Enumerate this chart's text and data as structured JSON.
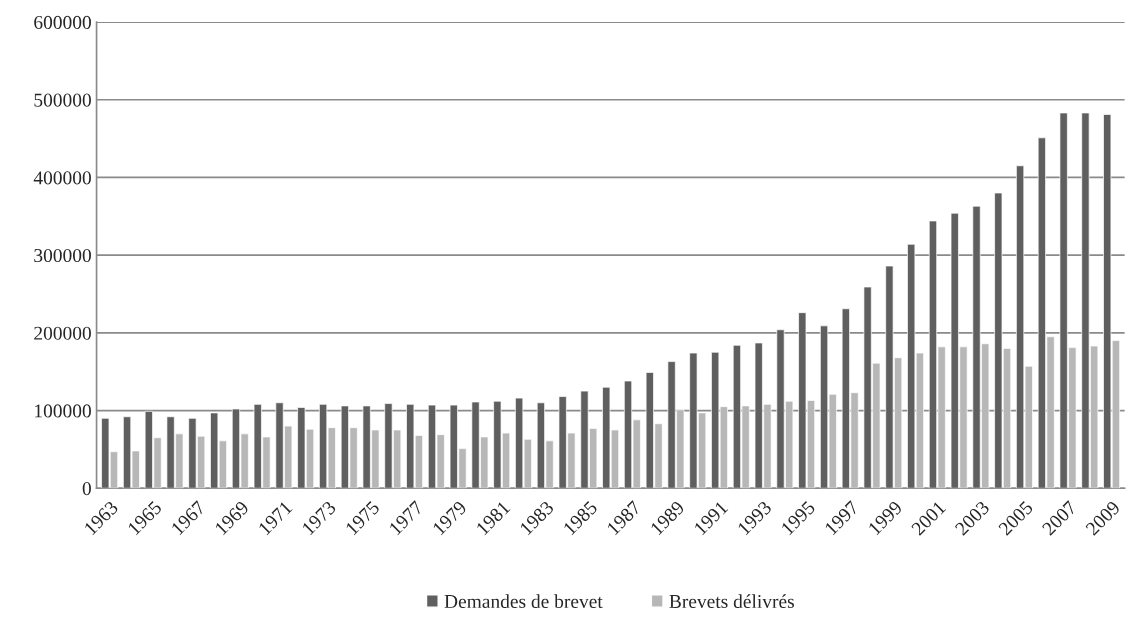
{
  "chart_data": {
    "type": "bar",
    "categories": [
      "1963",
      null,
      "1965",
      null,
      "1967",
      null,
      "1969",
      null,
      "1971",
      null,
      "1973",
      null,
      "1975",
      null,
      "1977",
      null,
      "1979",
      null,
      "1981",
      null,
      "1983",
      null,
      "1985",
      null,
      "1987",
      null,
      "1989",
      null,
      "1991",
      null,
      "1993",
      null,
      "1995",
      null,
      "1997",
      null,
      "1999",
      null,
      "2001",
      null,
      "2003",
      null,
      "2005",
      null,
      "2007",
      null,
      "2009"
    ],
    "series": [
      {
        "name": "Demandes de brevet",
        "color": "#5f5f5f",
        "values": [
          90000,
          92000,
          99000,
          92000,
          90000,
          97000,
          102000,
          108000,
          110000,
          104000,
          108000,
          106000,
          106000,
          109000,
          108000,
          107000,
          107000,
          111000,
          112000,
          116000,
          110000,
          118000,
          125000,
          130000,
          138000,
          149000,
          163000,
          174000,
          175000,
          184000,
          187000,
          204000,
          226000,
          209000,
          231000,
          259000,
          286000,
          314000,
          344000,
          354000,
          363000,
          380000,
          415000,
          451000,
          483000,
          483000,
          481000
        ]
      },
      {
        "name": "Brevets délivrés",
        "color": "#b7b7b7",
        "values": [
          47000,
          48000,
          65000,
          70000,
          67000,
          61000,
          70000,
          66000,
          80000,
          76000,
          78000,
          78000,
          75000,
          75000,
          68000,
          69000,
          51000,
          66000,
          71000,
          63000,
          61000,
          71000,
          77000,
          75000,
          88000,
          83000,
          101000,
          97000,
          105000,
          106000,
          108000,
          112000,
          113000,
          121000,
          123000,
          161000,
          168000,
          174000,
          182000,
          182000,
          186000,
          180000,
          157000,
          195000,
          181000,
          183000,
          190000
        ]
      }
    ],
    "ylim": [
      0,
      600000
    ],
    "yticks": [
      0,
      100000,
      200000,
      300000,
      400000,
      500000,
      600000
    ],
    "grid": "y",
    "legend": "bottom"
  }
}
